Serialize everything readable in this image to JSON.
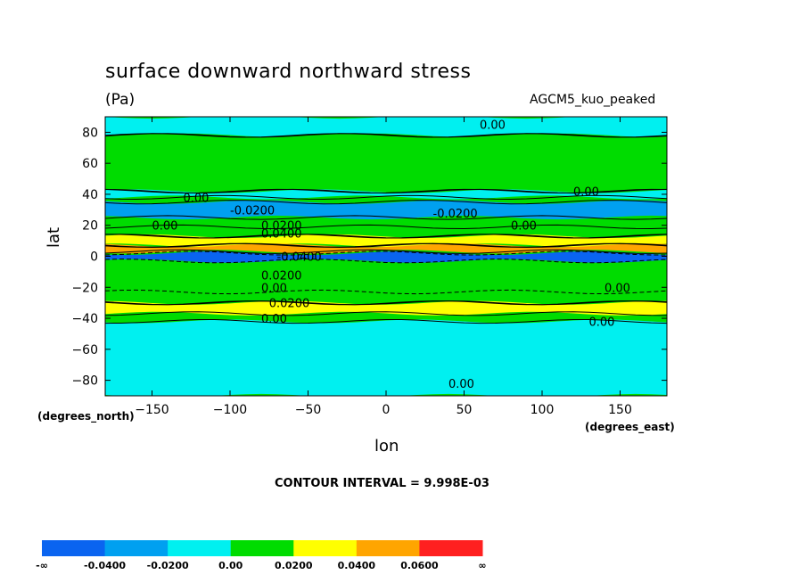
{
  "title": "surface downward northward stress",
  "units": "(Pa)",
  "dataset": "AGCM5_kuo_peaked",
  "xlabel": "lon",
  "ylabel": "lat",
  "x_units": "(degrees_east)",
  "y_units": "(degrees_north)",
  "contour_interval": "CONTOUR INTERVAL = 9.998E-03",
  "chart_data": {
    "type": "heatmap",
    "title": "surface downward northward stress",
    "units": "Pa",
    "x_axis": {
      "label": "lon",
      "units": "degrees_east",
      "range": [
        -180,
        180
      ],
      "ticks": [
        -150,
        -100,
        -50,
        0,
        50,
        100,
        150
      ]
    },
    "y_axis": {
      "label": "lat",
      "units": "degrees_north",
      "range": [
        -90,
        90
      ],
      "ticks": [
        -80,
        -60,
        -40,
        -20,
        0,
        20,
        40,
        60,
        80
      ]
    },
    "contour_levels": [
      "-∞",
      "-0.0400",
      "-0.0200",
      "0.00",
      "0.0200",
      "0.0400",
      "0.0600",
      "∞"
    ],
    "colorbar": [
      {
        "range": [
          "-∞",
          "-0.0400"
        ],
        "color": "#0a64f0"
      },
      {
        "range": [
          "-0.0400",
          "-0.0200"
        ],
        "color": "#00a0f0"
      },
      {
        "range": [
          "-0.0200",
          "0.00"
        ],
        "color": "#00f0f0"
      },
      {
        "range": [
          "0.00",
          "0.0200"
        ],
        "color": "#00dc00"
      },
      {
        "range": [
          "0.0200",
          "0.0400"
        ],
        "color": "#ffff00"
      },
      {
        "range": [
          "0.0400",
          "0.0600"
        ],
        "color": "#ffa500"
      },
      {
        "range": [
          "0.0600",
          "∞"
        ],
        "color": "#ff2020"
      }
    ],
    "zonal_bands": [
      {
        "lat_range": [
          78,
          90
        ],
        "value_band": "-0.0200 to 0.00"
      },
      {
        "lat_range": [
          42,
          78
        ],
        "value_band": "0.00 to 0.0200"
      },
      {
        "lat_range": [
          38,
          42
        ],
        "value_band": "-0.0200 to 0.00"
      },
      {
        "lat_range": [
          25,
          35
        ],
        "value_band": "-0.0400 to -0.0200"
      },
      {
        "lat_range": [
          13,
          19
        ],
        "value_band": "0.00 to 0.0200"
      },
      {
        "lat_range": [
          7,
          13
        ],
        "value_band": "0.0200 to 0.0400"
      },
      {
        "lat_range": [
          3,
          7
        ],
        "value_band": "0.0400 to 0.0600"
      },
      {
        "lat_range": [
          -3,
          2
        ],
        "value_band": "-∞ to -0.0400"
      },
      {
        "lat_range": [
          -30,
          -23
        ],
        "value_band": "0.00 to 0.0200"
      },
      {
        "lat_range": [
          -37,
          -30
        ],
        "value_band": "0.0200 to 0.0400"
      },
      {
        "lat_range": [
          -90,
          -42
        ],
        "value_band": "-0.0200 to 0.00"
      }
    ],
    "contour_labels": [
      "0.00",
      "-0.0200",
      "0.0200",
      "0.0400",
      "-0.0400"
    ]
  }
}
